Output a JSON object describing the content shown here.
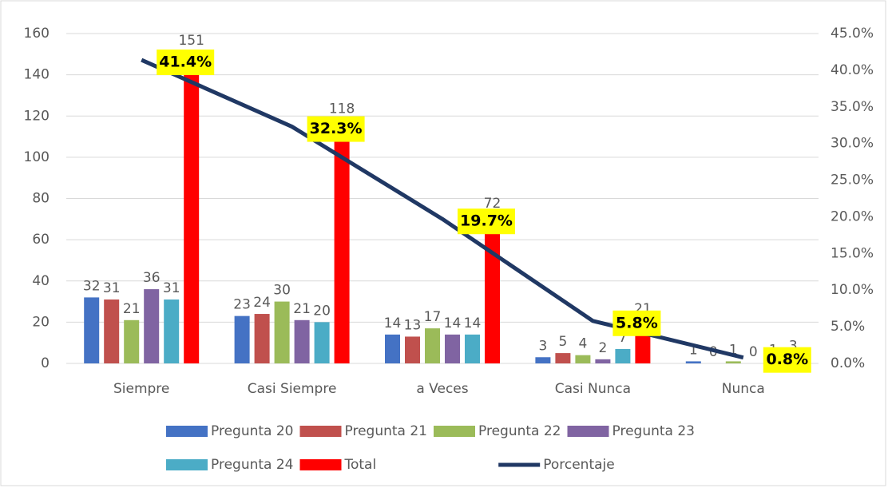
{
  "chart_data": {
    "type": "bar",
    "categories": [
      "Siempre",
      "Casi Siempre",
      "a Veces",
      "Casi Nunca",
      "Nunca"
    ],
    "series": [
      {
        "name": "Pregunta 20",
        "color": "#4472c4",
        "values": [
          32,
          23,
          14,
          3,
          1
        ]
      },
      {
        "name": "Pregunta 21",
        "color": "#c0504d",
        "values": [
          31,
          24,
          13,
          5,
          0
        ]
      },
      {
        "name": "Pregunta 22",
        "color": "#9bbb59",
        "values": [
          21,
          30,
          17,
          4,
          1
        ]
      },
      {
        "name": "Pregunta 23",
        "color": "#8064a2",
        "values": [
          36,
          21,
          14,
          2,
          0
        ]
      },
      {
        "name": "Pregunta 24",
        "color": "#4bacc6",
        "values": [
          31,
          20,
          14,
          7,
          1
        ]
      },
      {
        "name": "Total",
        "color": "#ff0000",
        "values": [
          151,
          118,
          72,
          21,
          3
        ]
      },
      {
        "name": "Porcentaje",
        "color": "#203864",
        "type": "line",
        "axis": "y2",
        "values": [
          41.4,
          32.3,
          19.7,
          5.8,
          0.8
        ],
        "value_labels": [
          "41.4%",
          "32.3%",
          "19.7%",
          "5.8%",
          "0.8%"
        ]
      }
    ],
    "ylim": [
      0,
      160
    ],
    "yticks": [
      0,
      20,
      40,
      60,
      80,
      100,
      120,
      140,
      160
    ],
    "y2lim": [
      0,
      45
    ],
    "y2ticks": [
      {
        "value": 0,
        "label": "0.0%"
      },
      {
        "value": 5,
        "label": "5.0%"
      },
      {
        "value": 10,
        "label": "10.0%"
      },
      {
        "value": 15,
        "label": "15.0%"
      },
      {
        "value": 20,
        "label": "20.0%"
      },
      {
        "value": 25,
        "label": "25.0%"
      },
      {
        "value": 30,
        "label": "30.0%"
      },
      {
        "value": 35,
        "label": "35.0%"
      },
      {
        "value": 40,
        "label": "40.0%"
      },
      {
        "value": 45,
        "label": "45.0%"
      }
    ],
    "grid": true,
    "legend": "bottom"
  }
}
